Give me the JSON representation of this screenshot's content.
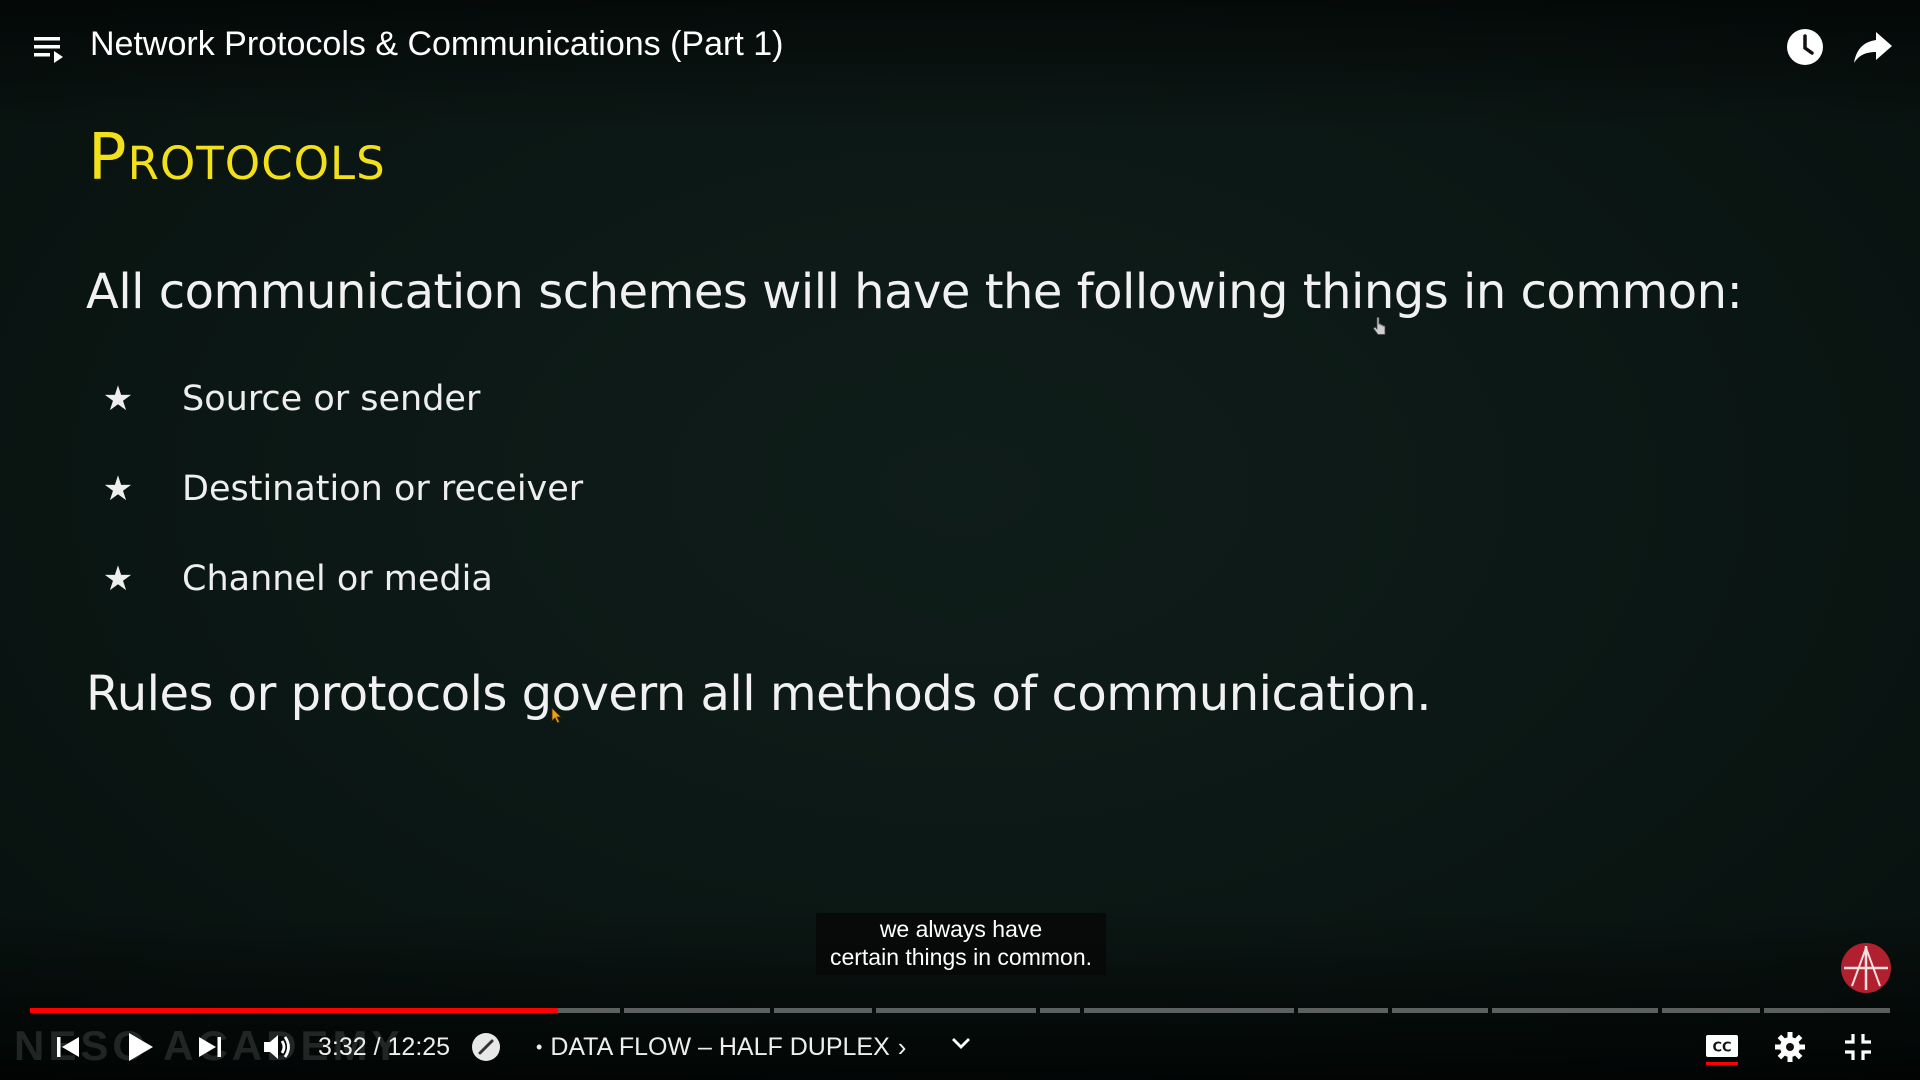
{
  "header": {
    "title": "Network Protocols & Communications (Part 1)",
    "playlist_icon": "playlist-icon",
    "watch_later_icon": "clock-icon",
    "share_icon": "share-icon"
  },
  "slide": {
    "heading": "Protocols",
    "intro": "All communication schemes will have the following things in common:",
    "bullets": [
      {
        "marker": "★",
        "text": "Source or sender"
      },
      {
        "marker": "★",
        "text": "Destination or receiver"
      },
      {
        "marker": "★",
        "text": "Channel or media"
      }
    ],
    "rule": "Rules or protocols govern all methods of communication."
  },
  "caption": {
    "line1": "we always have",
    "line2": "certain things in common."
  },
  "watermark": "NESO ACADEMY",
  "player": {
    "current_time": "3:32",
    "separator": " / ",
    "duration": "12:25",
    "progress_fraction": 0.284,
    "chapter_marker": "•",
    "chapter_title": "DATA FLOW – HALF DUPLEX",
    "chapter_chevron": "›",
    "chapters_expand": "⌄",
    "accent_color": "#ff0000",
    "icons": [
      "previous-icon",
      "play-icon",
      "next-icon",
      "volume-icon",
      "autoplay-icon",
      "captions-icon",
      "settings-icon",
      "exit-fullscreen-icon"
    ]
  }
}
